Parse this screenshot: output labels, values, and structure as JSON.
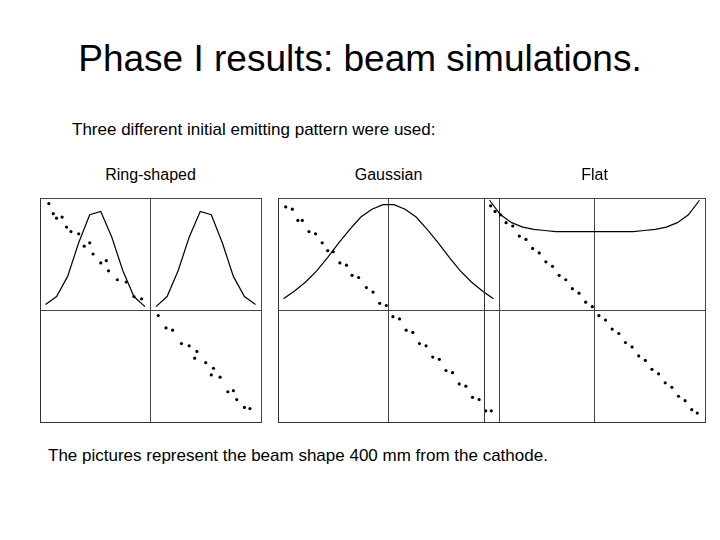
{
  "title": "Phase I results: beam simulations.",
  "subtitle": "Three different initial emitting pattern were used:",
  "caption": "The pictures represent the beam shape 400 mm from the cathode.",
  "chart_data": [
    {
      "type": "scatter",
      "title": "Ring-shaped",
      "xlim": [
        -1,
        1
      ],
      "ylim": [
        -1,
        1
      ],
      "xticks": [
        -1,
        0,
        1
      ],
      "yticks": [
        -1,
        0,
        1
      ],
      "grid": true,
      "tick_labels": false,
      "series": [
        {
          "type": "scatter",
          "color": "#000000",
          "marker": "dot",
          "x": [
            -0.92,
            -0.88,
            -0.85,
            -0.8,
            -0.76,
            -0.72,
            -0.65,
            -0.6,
            -0.55,
            -0.52,
            -0.45,
            -0.4,
            -0.38,
            -0.3,
            -0.22,
            -0.15,
            -0.08,
            0.07,
            0.14,
            0.2,
            0.28,
            0.35,
            0.4,
            0.42,
            0.5,
            0.55,
            0.57,
            0.63,
            0.7,
            0.75,
            0.78,
            0.85,
            0.9
          ],
          "values": [
            0.95,
            0.86,
            0.82,
            0.83,
            0.74,
            0.7,
            0.68,
            0.57,
            0.6,
            0.5,
            0.42,
            0.44,
            0.35,
            0.27,
            0.25,
            0.12,
            0.1,
            -0.05,
            -0.16,
            -0.18,
            -0.3,
            -0.32,
            -0.43,
            -0.37,
            -0.47,
            -0.58,
            -0.52,
            -0.6,
            -0.73,
            -0.72,
            -0.8,
            -0.87,
            -0.88
          ]
        },
        {
          "type": "line",
          "color": "#000000",
          "line_style": "solid",
          "x": [
            -0.95,
            -0.85,
            -0.75,
            -0.65,
            -0.55,
            -0.45,
            -0.35,
            -0.25,
            -0.15,
            -0.05,
            0,
            0.05,
            0.15,
            0.25,
            0.35,
            0.45,
            0.55,
            0.65,
            0.75,
            0.85,
            0.95
          ],
          "values": [
            0.05,
            0.12,
            0.3,
            0.6,
            0.85,
            0.88,
            0.65,
            0.35,
            0.12,
            0.03,
            null,
            0.03,
            0.12,
            0.35,
            0.65,
            0.88,
            0.85,
            0.6,
            0.3,
            0.12,
            0.05
          ]
        }
      ]
    },
    {
      "type": "scatter",
      "title": "Gaussian",
      "xlim": [
        -1,
        1
      ],
      "ylim": [
        -1,
        1
      ],
      "xticks": [
        -1,
        0,
        1
      ],
      "yticks": [
        -1,
        0,
        1
      ],
      "grid": true,
      "tick_labels": false,
      "series": [
        {
          "type": "scatter",
          "color": "#000000",
          "marker": "dot",
          "x": [
            -0.93,
            -0.87,
            -0.82,
            -0.78,
            -0.72,
            -0.66,
            -0.6,
            -0.55,
            -0.5,
            -0.44,
            -0.38,
            -0.33,
            -0.27,
            -0.2,
            -0.14,
            -0.08,
            -0.02,
            0.04,
            0.1,
            0.16,
            0.22,
            0.28,
            0.34,
            0.4,
            0.46,
            0.52,
            0.58,
            0.64,
            0.7,
            0.76,
            0.82,
            0.88,
            0.93
          ],
          "values": [
            0.92,
            0.9,
            0.8,
            0.8,
            0.7,
            0.68,
            0.6,
            0.53,
            0.52,
            0.42,
            0.4,
            0.31,
            0.29,
            0.2,
            0.16,
            0.06,
            0.04,
            -0.06,
            -0.08,
            -0.18,
            -0.2,
            -0.3,
            -0.32,
            -0.42,
            -0.44,
            -0.54,
            -0.56,
            -0.66,
            -0.68,
            -0.78,
            -0.8,
            -0.9,
            -0.9
          ]
        },
        {
          "type": "line",
          "color": "#000000",
          "line_style": "solid",
          "x": [
            -0.95,
            -0.85,
            -0.75,
            -0.65,
            -0.55,
            -0.45,
            -0.35,
            -0.25,
            -0.15,
            -0.05,
            0.05,
            0.15,
            0.25,
            0.35,
            0.45,
            0.55,
            0.65,
            0.75,
            0.85,
            0.95
          ],
          "values": [
            0.1,
            0.17,
            0.25,
            0.35,
            0.47,
            0.6,
            0.72,
            0.83,
            0.9,
            0.94,
            0.94,
            0.9,
            0.83,
            0.72,
            0.6,
            0.47,
            0.35,
            0.25,
            0.17,
            0.1
          ]
        }
      ]
    },
    {
      "type": "scatter",
      "title": "Flat",
      "xlim": [
        -1,
        1
      ],
      "ylim": [
        -1,
        1
      ],
      "xticks": [
        -1,
        0,
        1
      ],
      "yticks": [
        -1,
        0,
        1
      ],
      "grid": true,
      "tick_labels": false,
      "series": [
        {
          "type": "scatter",
          "color": "#000000",
          "marker": "dot",
          "x": [
            -0.94,
            -0.9,
            -0.85,
            -0.8,
            -0.74,
            -0.68,
            -0.62,
            -0.56,
            -0.5,
            -0.44,
            -0.38,
            -0.32,
            -0.26,
            -0.2,
            -0.14,
            -0.08,
            -0.02,
            0.04,
            0.1,
            0.16,
            0.22,
            0.28,
            0.34,
            0.4,
            0.46,
            0.52,
            0.58,
            0.64,
            0.7,
            0.76,
            0.82,
            0.88,
            0.93
          ],
          "values": [
            0.93,
            0.88,
            0.85,
            0.78,
            0.75,
            0.66,
            0.63,
            0.55,
            0.51,
            0.43,
            0.39,
            0.31,
            0.27,
            0.19,
            0.15,
            0.07,
            0.03,
            -0.05,
            -0.09,
            -0.17,
            -0.21,
            -0.29,
            -0.33,
            -0.41,
            -0.45,
            -0.53,
            -0.57,
            -0.65,
            -0.69,
            -0.77,
            -0.81,
            -0.89,
            -0.92
          ]
        },
        {
          "type": "line",
          "color": "#000000",
          "line_style": "solid",
          "x": [
            -0.95,
            -0.85,
            -0.75,
            -0.65,
            -0.55,
            -0.45,
            -0.35,
            -0.25,
            -0.15,
            -0.05,
            0.05,
            0.15,
            0.25,
            0.35,
            0.45,
            0.55,
            0.65,
            0.75,
            0.85,
            0.95
          ],
          "values": [
            0.98,
            0.85,
            0.78,
            0.74,
            0.72,
            0.71,
            0.7,
            0.7,
            0.7,
            0.7,
            0.7,
            0.7,
            0.7,
            0.7,
            0.71,
            0.72,
            0.74,
            0.78,
            0.85,
            0.98
          ]
        }
      ]
    }
  ]
}
